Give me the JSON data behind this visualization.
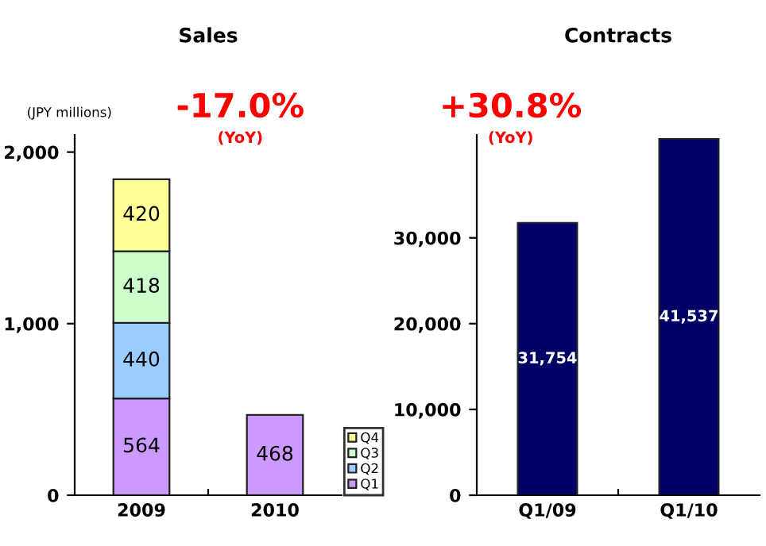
{
  "chart_data": [
    {
      "type": "bar",
      "title": "Sales",
      "stacked": true,
      "categories": [
        "2009",
        "2010"
      ],
      "series": [
        {
          "name": "Q1",
          "color": "#cc99ff",
          "values": [
            564,
            468
          ]
        },
        {
          "name": "Q2",
          "color": "#99ccff",
          "values": [
            440,
            null
          ]
        },
        {
          "name": "Q3",
          "color": "#ccffcc",
          "values": [
            418,
            null
          ]
        },
        {
          "name": "Q4",
          "color": "#ffff99",
          "values": [
            420,
            null
          ]
        }
      ],
      "ylim": [
        0,
        2100
      ],
      "yticks": [
        0,
        {
          "value": 1000,
          "label": "1,000"
        },
        {
          "value": 2000,
          "label": "2,000"
        }
      ],
      "data_labels": true,
      "legend": "bottom right",
      "grid": false,
      "annotations": [
        "(JPY millions)",
        "-17.0%",
        "(YoY)"
      ]
    },
    {
      "type": "bar",
      "title": "Contracts",
      "categories": [
        "Q1/09",
        "Q1/10"
      ],
      "series": [
        {
          "color": "#000066",
          "values": [
            31754,
            41537
          ]
        }
      ],
      "value_labels": [
        "31,754",
        "41,537"
      ],
      "ylim": [
        0,
        42000
      ],
      "yticks": [
        0,
        {
          "value": 10000,
          "label": "10,000"
        },
        {
          "value": 20000,
          "label": "20,000"
        },
        {
          "value": 30000,
          "label": "30,000"
        }
      ],
      "grid": false,
      "annotations": [
        "+30.8%",
        "(YoY)"
      ]
    }
  ]
}
